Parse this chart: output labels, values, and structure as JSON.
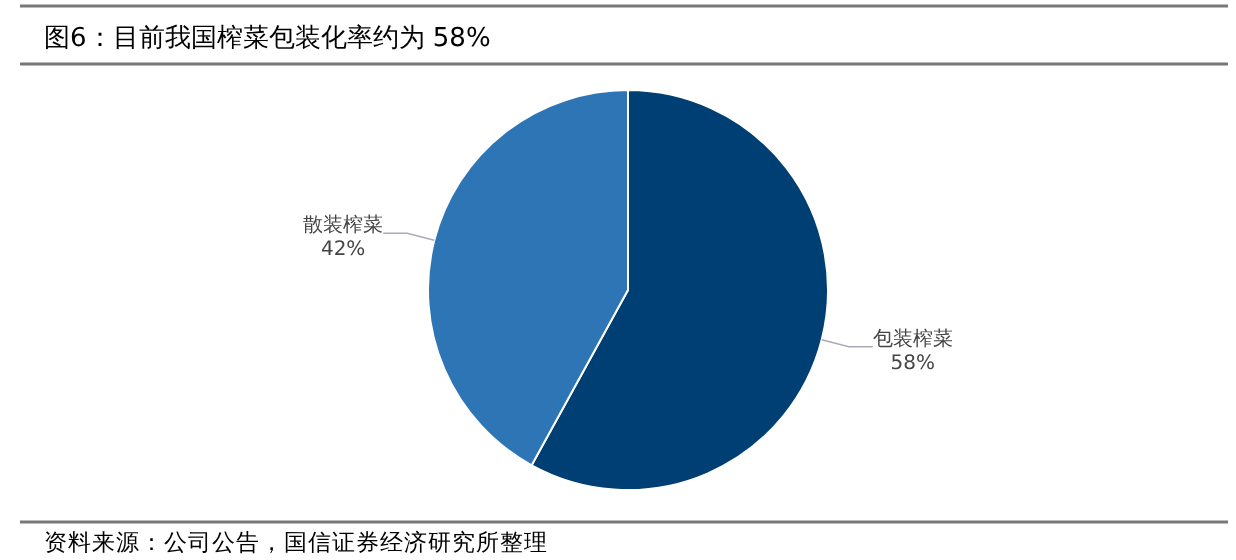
{
  "chart_data": {
    "type": "pie",
    "title": "图6：目前我国榨菜包装化率约为 58%",
    "categories": [
      "包装榨菜",
      "散装榨菜"
    ],
    "values": [
      58,
      42
    ],
    "colors": [
      "#003f73",
      "#2e75b6"
    ],
    "value_labels": [
      "58%",
      "42%"
    ],
    "annotations": [
      "资料来源：公司公告，国信证券经济研究所整理"
    ]
  }
}
